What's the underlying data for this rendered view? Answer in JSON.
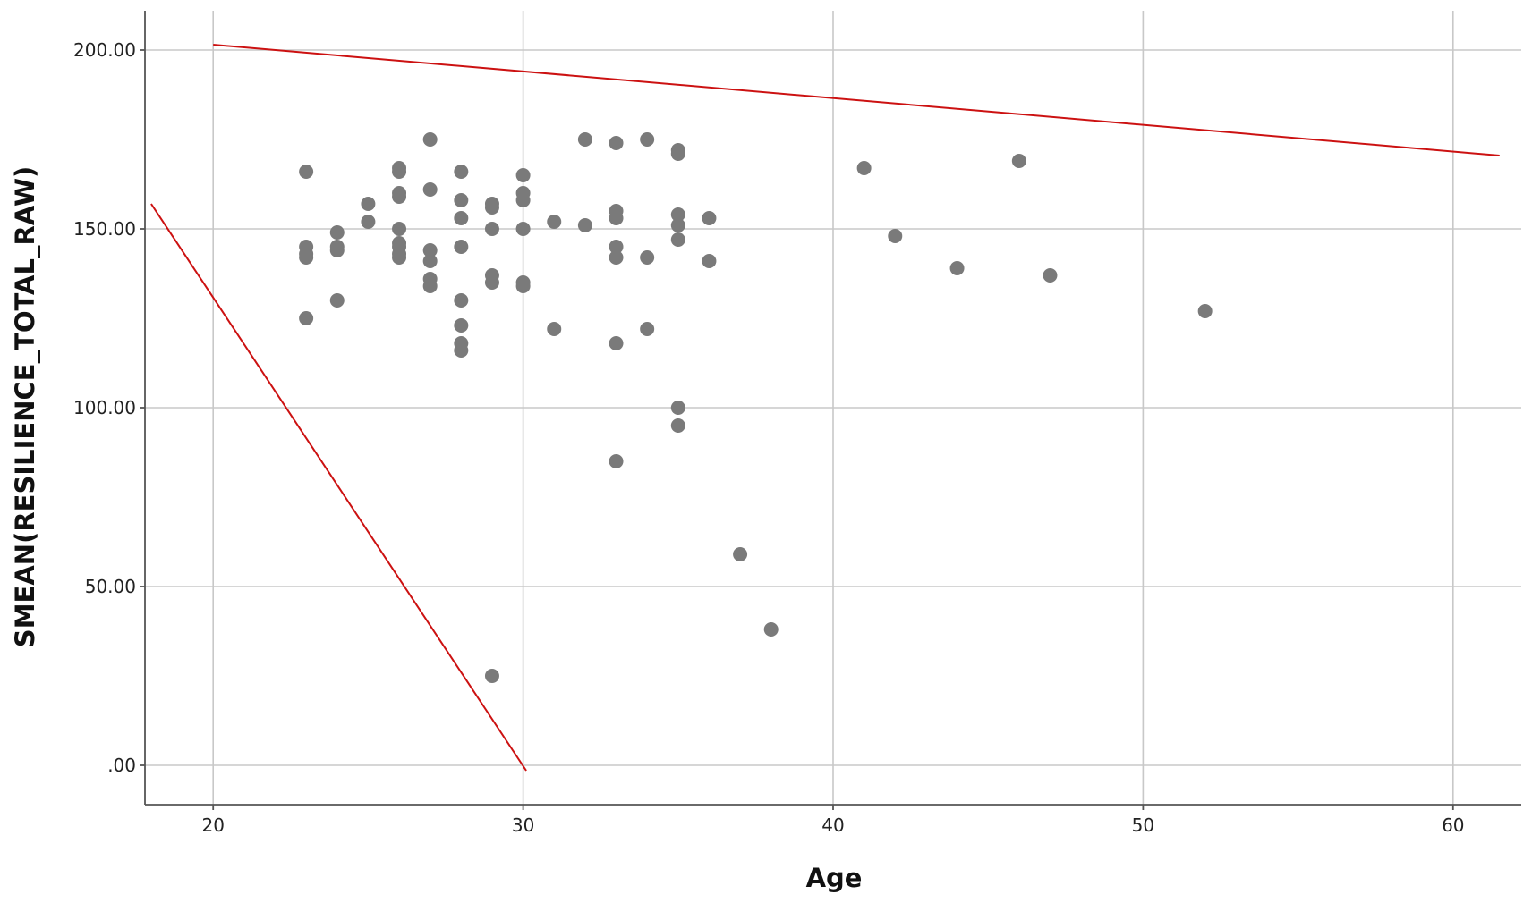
{
  "chart_data": {
    "type": "scatter",
    "xlabel": "Age",
    "ylabel": "SMEAN(RESILIENCE_TOTAL_RAW)",
    "xlim": [
      17.8,
      62.2
    ],
    "ylim": [
      -11,
      211
    ],
    "x_ticks": [
      20,
      30,
      40,
      50,
      60
    ],
    "x_tick_labels": [
      "20",
      "30",
      "40",
      "50",
      "60"
    ],
    "y_ticks": [
      0,
      50,
      100,
      150,
      200
    ],
    "y_tick_labels": [
      ".00",
      "50.00",
      "100.00",
      "150.00",
      "200.00"
    ],
    "grid": true,
    "point_color": "#7a7a7a",
    "line_color": "#cc1111",
    "points": [
      {
        "x": 23,
        "y": 166
      },
      {
        "x": 23,
        "y": 145
      },
      {
        "x": 23,
        "y": 143
      },
      {
        "x": 23,
        "y": 142
      },
      {
        "x": 23,
        "y": 125
      },
      {
        "x": 24,
        "y": 149
      },
      {
        "x": 24,
        "y": 145
      },
      {
        "x": 24,
        "y": 144
      },
      {
        "x": 24,
        "y": 130
      },
      {
        "x": 25,
        "y": 157
      },
      {
        "x": 25,
        "y": 152
      },
      {
        "x": 26,
        "y": 167
      },
      {
        "x": 26,
        "y": 166
      },
      {
        "x": 26,
        "y": 160
      },
      {
        "x": 26,
        "y": 159
      },
      {
        "x": 26,
        "y": 150
      },
      {
        "x": 26,
        "y": 146
      },
      {
        "x": 26,
        "y": 145
      },
      {
        "x": 26,
        "y": 143
      },
      {
        "x": 26,
        "y": 142
      },
      {
        "x": 27,
        "y": 175
      },
      {
        "x": 27,
        "y": 161
      },
      {
        "x": 27,
        "y": 144
      },
      {
        "x": 27,
        "y": 141
      },
      {
        "x": 27,
        "y": 136
      },
      {
        "x": 27,
        "y": 134
      },
      {
        "x": 28,
        "y": 166
      },
      {
        "x": 28,
        "y": 158
      },
      {
        "x": 28,
        "y": 153
      },
      {
        "x": 28,
        "y": 145
      },
      {
        "x": 28,
        "y": 130
      },
      {
        "x": 28,
        "y": 123
      },
      {
        "x": 28,
        "y": 118
      },
      {
        "x": 28,
        "y": 116
      },
      {
        "x": 29,
        "y": 157
      },
      {
        "x": 29,
        "y": 156
      },
      {
        "x": 29,
        "y": 150
      },
      {
        "x": 29,
        "y": 137
      },
      {
        "x": 29,
        "y": 135
      },
      {
        "x": 29,
        "y": 25
      },
      {
        "x": 30,
        "y": 165
      },
      {
        "x": 30,
        "y": 160
      },
      {
        "x": 30,
        "y": 158
      },
      {
        "x": 30,
        "y": 150
      },
      {
        "x": 30,
        "y": 135
      },
      {
        "x": 30,
        "y": 134
      },
      {
        "x": 31,
        "y": 152
      },
      {
        "x": 31,
        "y": 122
      },
      {
        "x": 32,
        "y": 175
      },
      {
        "x": 32,
        "y": 151
      },
      {
        "x": 33,
        "y": 174
      },
      {
        "x": 33,
        "y": 155
      },
      {
        "x": 33,
        "y": 153
      },
      {
        "x": 33,
        "y": 145
      },
      {
        "x": 33,
        "y": 142
      },
      {
        "x": 33,
        "y": 118
      },
      {
        "x": 33,
        "y": 85
      },
      {
        "x": 34,
        "y": 175
      },
      {
        "x": 34,
        "y": 142
      },
      {
        "x": 34,
        "y": 122
      },
      {
        "x": 35,
        "y": 172
      },
      {
        "x": 35,
        "y": 171
      },
      {
        "x": 35,
        "y": 154
      },
      {
        "x": 35,
        "y": 151
      },
      {
        "x": 35,
        "y": 147
      },
      {
        "x": 35,
        "y": 100
      },
      {
        "x": 35,
        "y": 95
      },
      {
        "x": 36,
        "y": 153
      },
      {
        "x": 36,
        "y": 141
      },
      {
        "x": 37,
        "y": 59
      },
      {
        "x": 38,
        "y": 38
      },
      {
        "x": 41,
        "y": 167
      },
      {
        "x": 42,
        "y": 148
      },
      {
        "x": 44,
        "y": 139
      },
      {
        "x": 46,
        "y": 169
      },
      {
        "x": 47,
        "y": 137
      },
      {
        "x": 52,
        "y": 127
      }
    ],
    "reference_lines": [
      {
        "x1": 20,
        "y1": 201.5,
        "x2": 61.5,
        "y2": 170.5
      },
      {
        "x1": 18,
        "y1": 157,
        "x2": 30.1,
        "y2": -1.5
      }
    ]
  }
}
